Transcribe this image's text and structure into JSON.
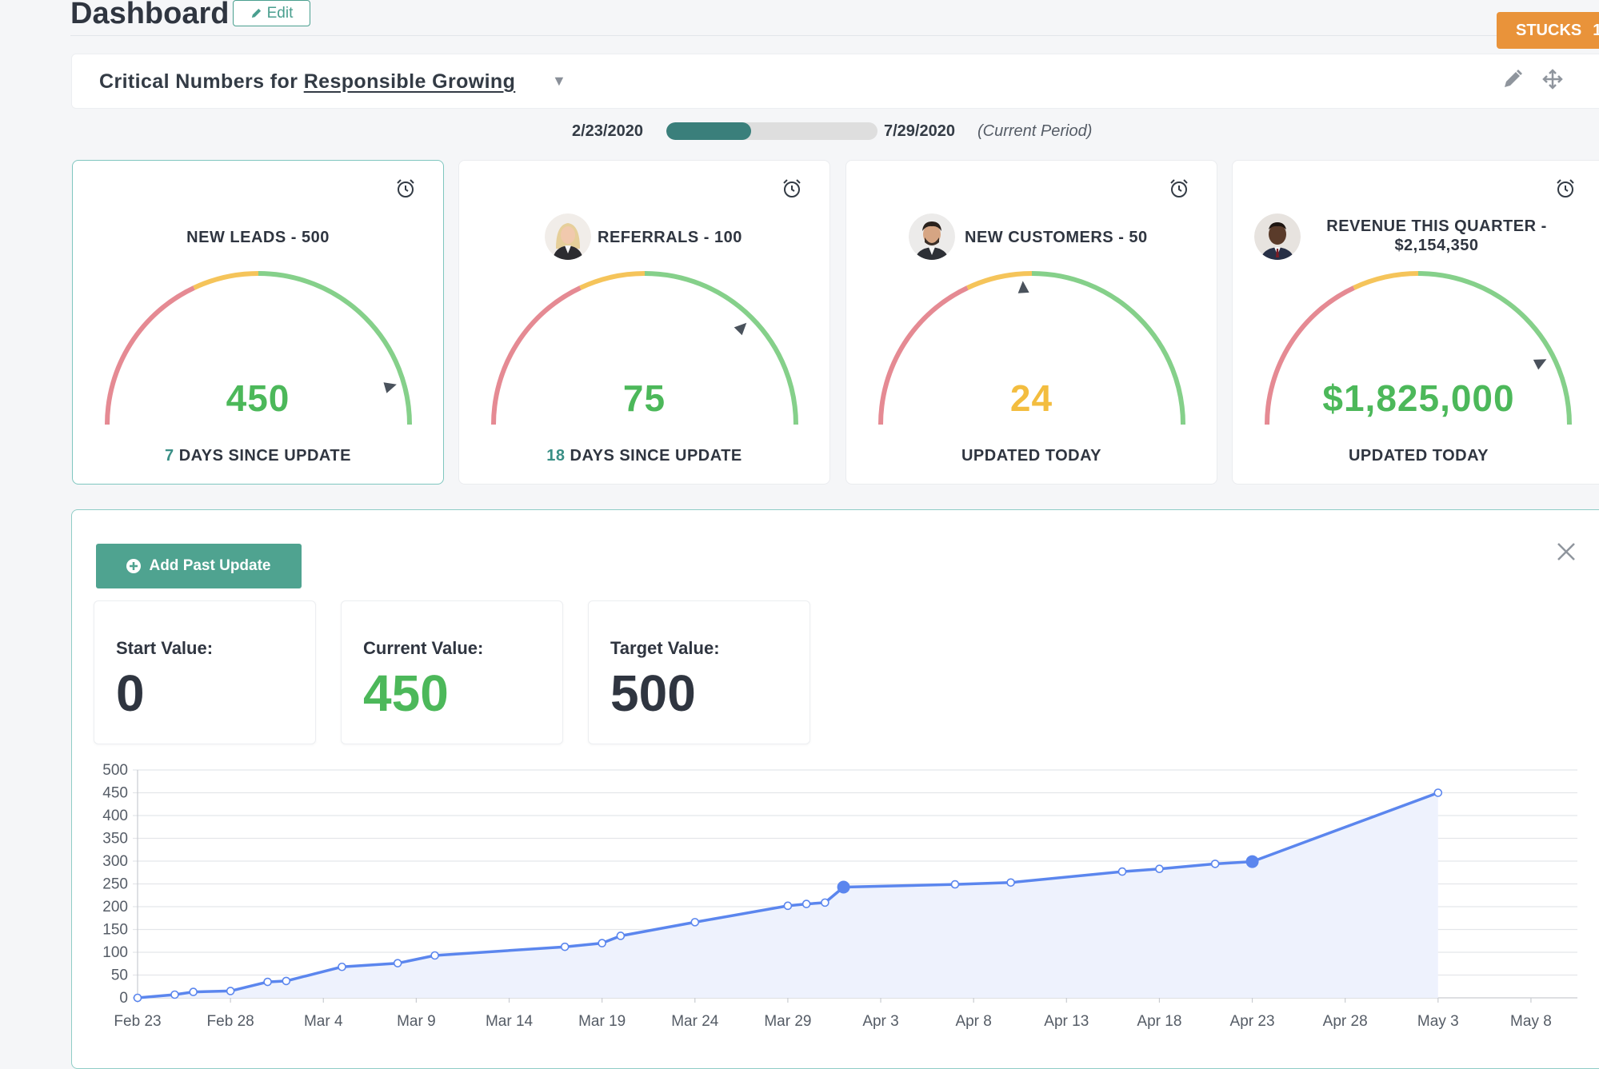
{
  "header": {
    "title": "Dashboard",
    "edit_label": "Edit",
    "stucks_label": "STUCKS",
    "stucks_count": "1"
  },
  "critical_numbers": {
    "prefix": "Critical Numbers for",
    "name": "Responsible Growing"
  },
  "period": {
    "start": "2/23/2020",
    "end": "7/29/2020",
    "note": "(Current Period)",
    "progress": 0.4
  },
  "colors": {
    "red": "#e58a93",
    "yellow": "#f5c45a",
    "green": "#85d08a",
    "value_green": "#4cb85a",
    "value_yellow": "#f3bd3f",
    "teal": "#3a7f7b",
    "line": "#5b86ee"
  },
  "cards": [
    {
      "title": "NEW LEADS - 500",
      "value": "450",
      "value_color": "green",
      "footer_num": "7",
      "footer_text": "DAYS SINCE UPDATE",
      "needle": 0.91,
      "has_avatar": false
    },
    {
      "title": "REFERRALS - 100",
      "value": "75",
      "value_color": "green",
      "footer_num": "18",
      "footer_text": "DAYS SINCE UPDATE",
      "needle": 0.75,
      "has_avatar": true
    },
    {
      "title": "NEW CUSTOMERS - 50",
      "value": "24",
      "value_color": "yellow",
      "footer_num": "",
      "footer_text": "UPDATED TODAY",
      "needle": 0.48,
      "has_avatar": true
    },
    {
      "title_line1": "REVENUE THIS QUARTER -",
      "title_line2": "$2,154,350",
      "value": "$1,825,000",
      "value_color": "green",
      "footer_num": "",
      "footer_text": "UPDATED TODAY",
      "needle": 0.85,
      "has_avatar": true
    }
  ],
  "panel": {
    "add_label": "Add Past Update",
    "start_label": "Start Value:",
    "start_value": "0",
    "current_label": "Current Value:",
    "current_value": "450",
    "target_label": "Target Value:",
    "target_value": "500"
  },
  "chart_data": {
    "type": "line",
    "x_start": "Feb 23",
    "x_ticks": [
      "Feb 23",
      "Feb 28",
      "Mar 4",
      "Mar 9",
      "Mar 14",
      "Mar 19",
      "Mar 24",
      "Mar 29",
      "Apr 3",
      "Apr 8",
      "Apr 13",
      "Apr 18",
      "Apr 23",
      "Apr 28",
      "May 3",
      "May 8"
    ],
    "y_ticks": [
      0,
      50,
      100,
      150,
      200,
      250,
      300,
      350,
      400,
      450,
      500
    ],
    "ylim": [
      0,
      500
    ],
    "grid": true,
    "points": [
      {
        "x": "Feb 23",
        "y": 0
      },
      {
        "x": "Feb 25",
        "y": 7
      },
      {
        "x": "Feb 26",
        "y": 13
      },
      {
        "x": "Feb 28",
        "y": 15
      },
      {
        "x": "Mar 1",
        "y": 35
      },
      {
        "x": "Mar 2",
        "y": 37
      },
      {
        "x": "Mar 5",
        "y": 68
      },
      {
        "x": "Mar 8",
        "y": 76
      },
      {
        "x": "Mar 10",
        "y": 93
      },
      {
        "x": "Mar 17",
        "y": 112
      },
      {
        "x": "Mar 19",
        "y": 120
      },
      {
        "x": "Mar 20",
        "y": 136
      },
      {
        "x": "Mar 24",
        "y": 166
      },
      {
        "x": "Mar 29",
        "y": 202
      },
      {
        "x": "Mar 30",
        "y": 206
      },
      {
        "x": "Mar 31",
        "y": 209
      },
      {
        "x": "Apr 1",
        "y": 243,
        "highlight": true
      },
      {
        "x": "Apr 7",
        "y": 249
      },
      {
        "x": "Apr 10",
        "y": 253
      },
      {
        "x": "Apr 16",
        "y": 277
      },
      {
        "x": "Apr 18",
        "y": 283
      },
      {
        "x": "Apr 21",
        "y": 294
      },
      {
        "x": "Apr 23",
        "y": 299,
        "highlight": true
      },
      {
        "x": "May 3",
        "y": 450
      }
    ]
  }
}
